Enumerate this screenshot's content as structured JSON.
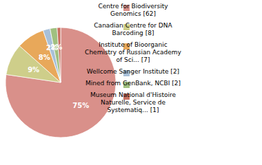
{
  "chart_data": {
    "type": "pie",
    "categories": [
      "Centre for Biodiversity\nGenomics [62]",
      "Canadian Centre for DNA\nBarcoding [8]",
      "Institute of Bioorganic\nChemistry of Russian Academy\nof Sci... [7]",
      "Wellcome Sanger Institute [2]",
      "Mined from GenBank, NCBI [2]",
      "Museum National d'Histoire\nNaturelle, Service de\nSystematiq... [1]"
    ],
    "values": [
      75,
      9,
      8,
      2,
      2,
      1
    ],
    "value_labels": [
      "75%",
      "9%",
      "8%",
      "2%",
      "2%",
      null
    ],
    "colors": [
      "#d9908a",
      "#cece8a",
      "#e8a85a",
      "#a8c0d8",
      "#a0c080",
      "#c87060"
    ],
    "data_labels": true,
    "legend": "right"
  }
}
